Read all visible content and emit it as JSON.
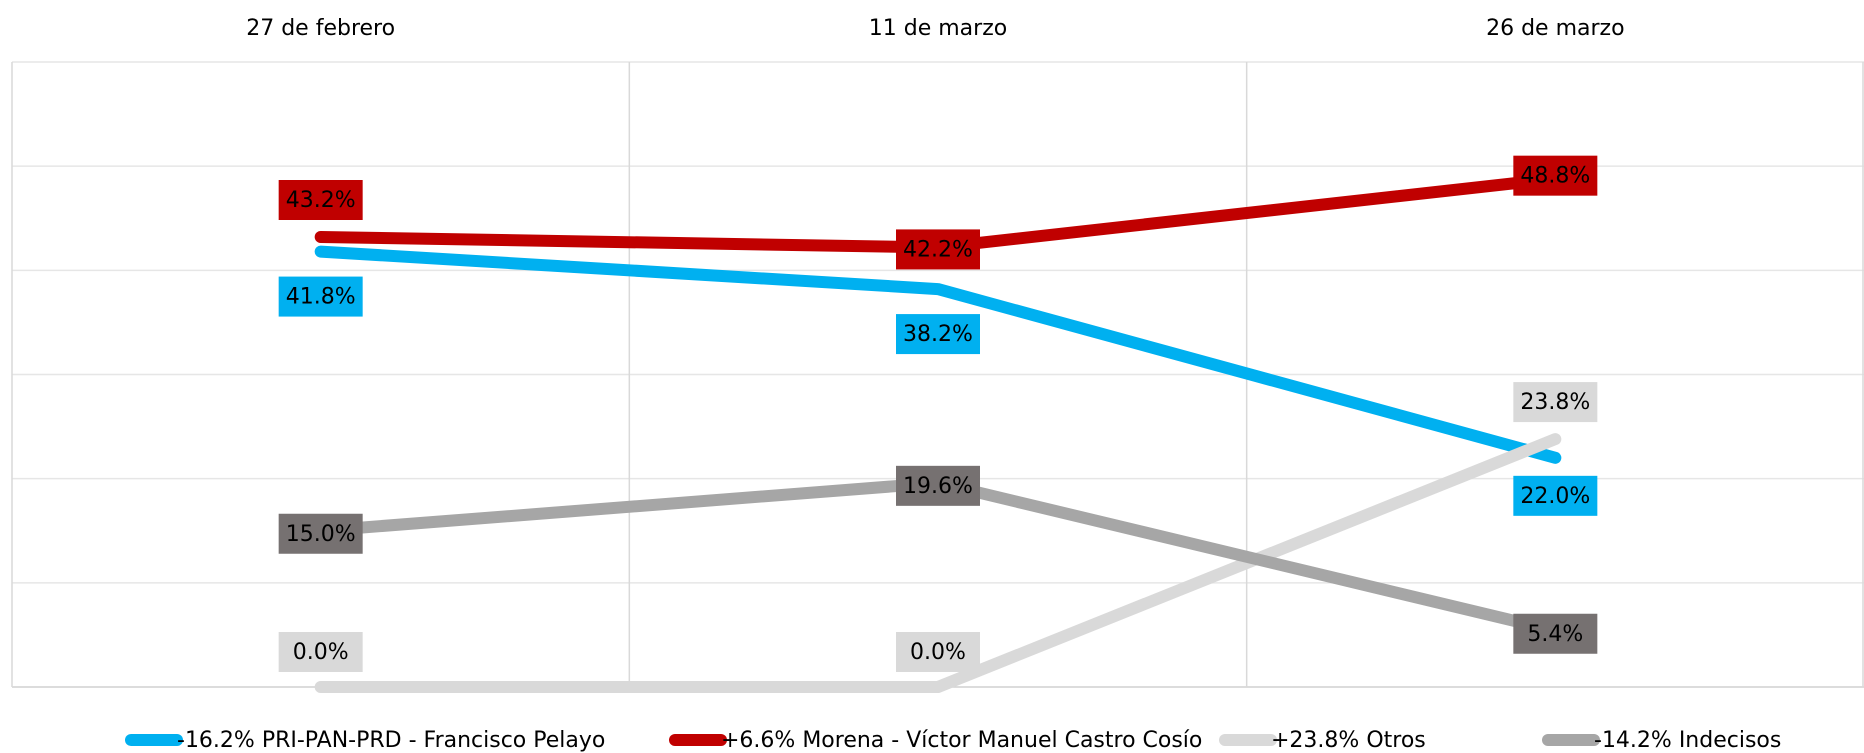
{
  "chart_data": {
    "type": "line",
    "categories": [
      "27 de febrero",
      "11 de marzo",
      "26 de marzo"
    ],
    "ylim": [
      0,
      60
    ],
    "yticks": [
      0,
      10,
      20,
      30,
      40,
      50,
      60
    ],
    "grid": true,
    "legend": "bottom",
    "series": [
      {
        "name": "-16.2% PRI-PAN-PRD - Francisco Pelayo",
        "color": "#00b0f0",
        "label_color": "#00b0f0",
        "values": [
          41.8,
          38.2,
          22.0
        ],
        "value_labels": [
          "41.8%",
          "38.2%",
          "22.0%"
        ]
      },
      {
        "name": "+6.6% Morena - Víctor Manuel Castro Cosío",
        "color": "#c00000",
        "label_color": "#c00000",
        "values": [
          43.2,
          42.2,
          48.8
        ],
        "value_labels": [
          "43.2%",
          "42.2%",
          "48.8%"
        ]
      },
      {
        "name": "+23.8% Otros",
        "color": "#d9d9d9",
        "label_color": "#d9d9d9",
        "values": [
          0.0,
          0.0,
          23.8
        ],
        "value_labels": [
          "0.0%",
          "0.0%",
          "23.8%"
        ]
      },
      {
        "name": "-14.2% Indecisos",
        "color": "#a6a6a6",
        "label_color": "#767171",
        "values": [
          15.0,
          19.6,
          5.4
        ],
        "value_labels": [
          "15.0%",
          "19.6%",
          "5.4%"
        ]
      }
    ]
  }
}
